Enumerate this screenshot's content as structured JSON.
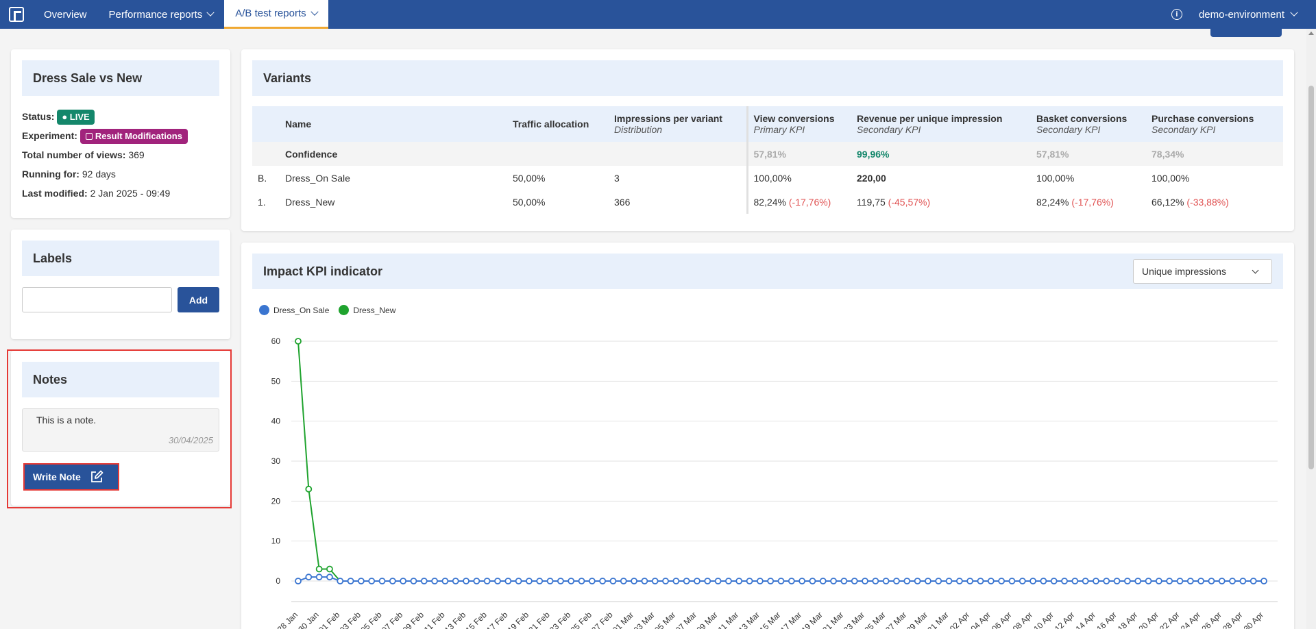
{
  "nav": {
    "items": [
      {
        "label": "Overview"
      },
      {
        "label": "Performance reports"
      },
      {
        "label": "A/B test reports"
      }
    ],
    "env_label": "demo-environment"
  },
  "test": {
    "title": "Dress Sale vs New",
    "status_label": "Status:",
    "status_value": "● LIVE",
    "experiment_label": "Experiment:",
    "experiment_value": "Result Modifications",
    "views_label": "Total number of views:",
    "views_value": "369",
    "running_label": "Running for:",
    "running_value": "92 days",
    "modified_label": "Last modified:",
    "modified_value": "2 Jan 2025 - 09:49"
  },
  "labels": {
    "title": "Labels",
    "input_value": "",
    "add_label": "Add"
  },
  "notes": {
    "title": "Notes",
    "note_text": "This is a note.",
    "note_date": "30/04/2025",
    "write_label": "Write Note"
  },
  "variants": {
    "title": "Variants",
    "columns": {
      "name": "Name",
      "traffic": "Traffic allocation",
      "impressions": "Impressions per variant",
      "impressions_sub": "Distribution",
      "view": "View conversions",
      "view_sub": "Primary KPI",
      "revenue": "Revenue per unique impression",
      "revenue_sub": "Secondary KPI",
      "basket": "Basket conversions",
      "basket_sub": "Secondary KPI",
      "purchase": "Purchase conversions",
      "purchase_sub": "Secondary KPI"
    },
    "confidence": {
      "label": "Confidence",
      "view": "57,81%",
      "revenue": "99,96%",
      "basket": "57,81%",
      "purchase": "78,34%"
    },
    "rows": [
      {
        "id": "B.",
        "name": "Dress_On Sale",
        "traffic": "50,00%",
        "impressions": "3",
        "view": "100,00%",
        "view_delta": "",
        "revenue": "220,00",
        "revenue_delta": "",
        "basket": "100,00%",
        "basket_delta": "",
        "purchase": "100,00%",
        "purchase_delta": ""
      },
      {
        "id": "1.",
        "name": "Dress_New",
        "traffic": "50,00%",
        "impressions": "366",
        "view": "82,24%",
        "view_delta": "(-17,76%)",
        "revenue": "119,75",
        "revenue_delta": "(-45,57%)",
        "basket": "82,24%",
        "basket_delta": "(-17,76%)",
        "purchase": "66,12%",
        "purchase_delta": "(-33,88%)"
      }
    ]
  },
  "impact": {
    "title": "Impact KPI indicator",
    "select_value": "Unique impressions"
  },
  "chart_data": {
    "type": "line",
    "ylim": [
      0,
      60
    ],
    "yticks": [
      0,
      10,
      20,
      30,
      40,
      50,
      60
    ],
    "x": [
      "28 Jan",
      "30 Jan",
      "01 Feb",
      "03 Feb",
      "05 Feb",
      "07 Feb",
      "09 Feb",
      "11 Feb",
      "13 Feb",
      "15 Feb",
      "17 Feb",
      "19 Feb",
      "21 Feb",
      "23 Feb",
      "25 Feb",
      "27 Feb",
      "01 Mar",
      "03 Mar",
      "05 Mar",
      "07 Mar",
      "09 Mar",
      "11 Mar",
      "13 Mar",
      "15 Mar",
      "17 Mar",
      "19 Mar",
      "21 Mar",
      "23 Mar",
      "25 Mar",
      "27 Mar",
      "29 Mar",
      "31 Mar",
      "02 Apr",
      "04 Apr",
      "06 Apr",
      "08 Apr",
      "10 Apr",
      "12 Apr",
      "14 Apr",
      "16 Apr",
      "18 Apr",
      "20 Apr",
      "22 Apr",
      "24 Apr",
      "26 Apr",
      "28 Apr",
      "30 Apr"
    ],
    "points_per_label": 2,
    "total_points": 93,
    "series": [
      {
        "name": "Dress_On Sale",
        "color": "#3a75d0",
        "values_head": [
          0,
          1,
          1,
          1
        ],
        "tail_value": 0
      },
      {
        "name": "Dress_New",
        "color": "#1fa32e",
        "values_head": [
          60,
          23,
          3,
          3
        ],
        "tail_value": 0
      }
    ],
    "grid": true,
    "legend": "top-left"
  }
}
